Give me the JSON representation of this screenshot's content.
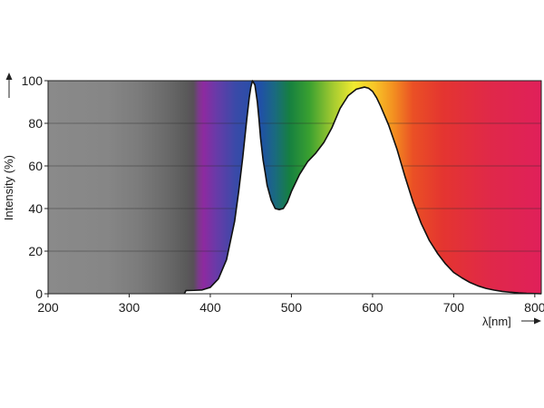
{
  "chart_data": {
    "type": "area",
    "xlabel": "λ[nm]",
    "ylabel": "Intensity (%)",
    "xlim": [
      200,
      808
    ],
    "ylim": [
      0,
      100
    ],
    "x_ticks": [
      200,
      300,
      400,
      500,
      600,
      700,
      800
    ],
    "y_ticks": [
      0,
      20,
      40,
      60,
      80,
      100
    ],
    "grid": "horizontal",
    "legend": "none",
    "background": "visible-spectrum color band behind the curve, gray below ~380 nm",
    "series": [
      {
        "x": [
          368,
          370,
          380,
          390,
          400,
          410,
          420,
          430,
          435,
          440,
          445,
          448,
          450,
          452,
          455,
          458,
          460,
          462,
          465,
          468,
          470,
          475,
          480,
          485,
          490,
          495,
          500,
          510,
          520,
          530,
          540,
          550,
          560,
          570,
          580,
          590,
          595,
          600,
          605,
          610,
          620,
          630,
          640,
          650,
          660,
          670,
          680,
          690,
          700,
          710,
          720,
          730,
          740,
          750,
          760,
          770,
          780,
          790,
          800,
          808
        ],
        "y": [
          0,
          1.5,
          1.6,
          1.8,
          3,
          7,
          16,
          34,
          48,
          64,
          82,
          92,
          97,
          100,
          98,
          90,
          82,
          73,
          63,
          56,
          51,
          44,
          40,
          39.5,
          40,
          43,
          48,
          56,
          62,
          66,
          71,
          78,
          87,
          93,
          96,
          97,
          96.5,
          95,
          92,
          88,
          79,
          68,
          55,
          43,
          33,
          25,
          19,
          14,
          10,
          7.5,
          5.3,
          3.7,
          2.5,
          1.7,
          1.1,
          0.7,
          0.4,
          0.2,
          0.1,
          0
        ]
      }
    ]
  }
}
